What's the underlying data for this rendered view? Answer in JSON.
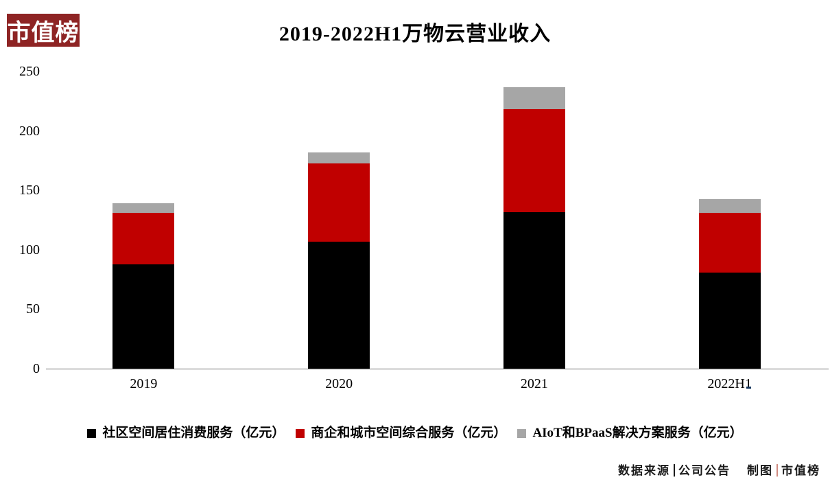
{
  "logo": {
    "text": "市值榜",
    "bg_color": "#8e2424",
    "text_color": "#ffffff"
  },
  "title": "2019-2022H1万物云营业收入",
  "chart_data": {
    "type": "bar",
    "stacked": true,
    "title": "2019-2022H1万物云营业收入",
    "categories": [
      "2019",
      "2020",
      "2021",
      "2022H1"
    ],
    "series": [
      {
        "name": "社区空间居住消费服务（亿元）",
        "color": "#000000",
        "values": [
          87.7,
          106.6,
          131.6,
          80.8
        ]
      },
      {
        "name": "商企和城市空间综合服务（亿元）",
        "color": "#c00000",
        "values": [
          43.2,
          65.8,
          86.9,
          50.4
        ]
      },
      {
        "name": "AIoT和BPaaS解决方案服务（亿元）",
        "color": "#a6a6a6",
        "values": [
          8.4,
          9.4,
          18.5,
          11.7
        ]
      }
    ],
    "xlabel": "",
    "ylabel": "",
    "ylim": [
      0,
      250
    ],
    "yticks": [
      0,
      50,
      100,
      150,
      200,
      250
    ],
    "grid": false,
    "legend_position": "bottom",
    "axis_line_color": "#dcdcdc"
  },
  "footer": {
    "source_label": "数据来源",
    "source_value": "公司公告",
    "credit_label": "制图",
    "credit_value": "市值榜",
    "separator_dark_color": "#1a1a1a",
    "separator_red_color": "#d08a80"
  }
}
